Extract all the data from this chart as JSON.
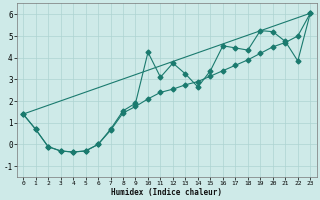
{
  "xlabel": "Humidex (Indice chaleur)",
  "ylabel": "",
  "background_color": "#ceeae8",
  "grid_color": "#aed4d2",
  "line_color": "#1a7a6e",
  "xlim": [
    -0.5,
    23.5
  ],
  "ylim": [
    -1.5,
    6.5
  ],
  "xticks": [
    0,
    1,
    2,
    3,
    4,
    5,
    6,
    7,
    8,
    9,
    10,
    11,
    12,
    13,
    14,
    15,
    16,
    17,
    18,
    19,
    20,
    21,
    22,
    23
  ],
  "yticks": [
    -1,
    0,
    1,
    2,
    3,
    4,
    5,
    6
  ],
  "series1_x": [
    0,
    1,
    2,
    3,
    4,
    5,
    6,
    7,
    8,
    9,
    10,
    11,
    12,
    13,
    14,
    15,
    16,
    17,
    18,
    19,
    20,
    21,
    22,
    23
  ],
  "series1_y": [
    1.4,
    0.7,
    -0.1,
    -0.3,
    -0.35,
    -0.3,
    0.0,
    0.7,
    1.55,
    1.9,
    4.25,
    3.1,
    3.75,
    3.25,
    2.65,
    3.4,
    4.55,
    4.45,
    4.35,
    5.25,
    5.2,
    4.75,
    3.85,
    6.05
  ],
  "series2_x": [
    0,
    1,
    2,
    3,
    4,
    5,
    6,
    7,
    8,
    9,
    10,
    11,
    12,
    13,
    14,
    15,
    16,
    17,
    18,
    19,
    20,
    21,
    22,
    23
  ],
  "series2_y": [
    1.4,
    0.7,
    -0.1,
    -0.3,
    -0.35,
    -0.3,
    0.0,
    0.65,
    1.45,
    1.75,
    2.1,
    2.4,
    2.55,
    2.75,
    2.9,
    3.15,
    3.4,
    3.65,
    3.9,
    4.2,
    4.5,
    4.7,
    5.0,
    6.05
  ],
  "series3_x": [
    0,
    23
  ],
  "series3_y": [
    1.4,
    6.05
  ]
}
